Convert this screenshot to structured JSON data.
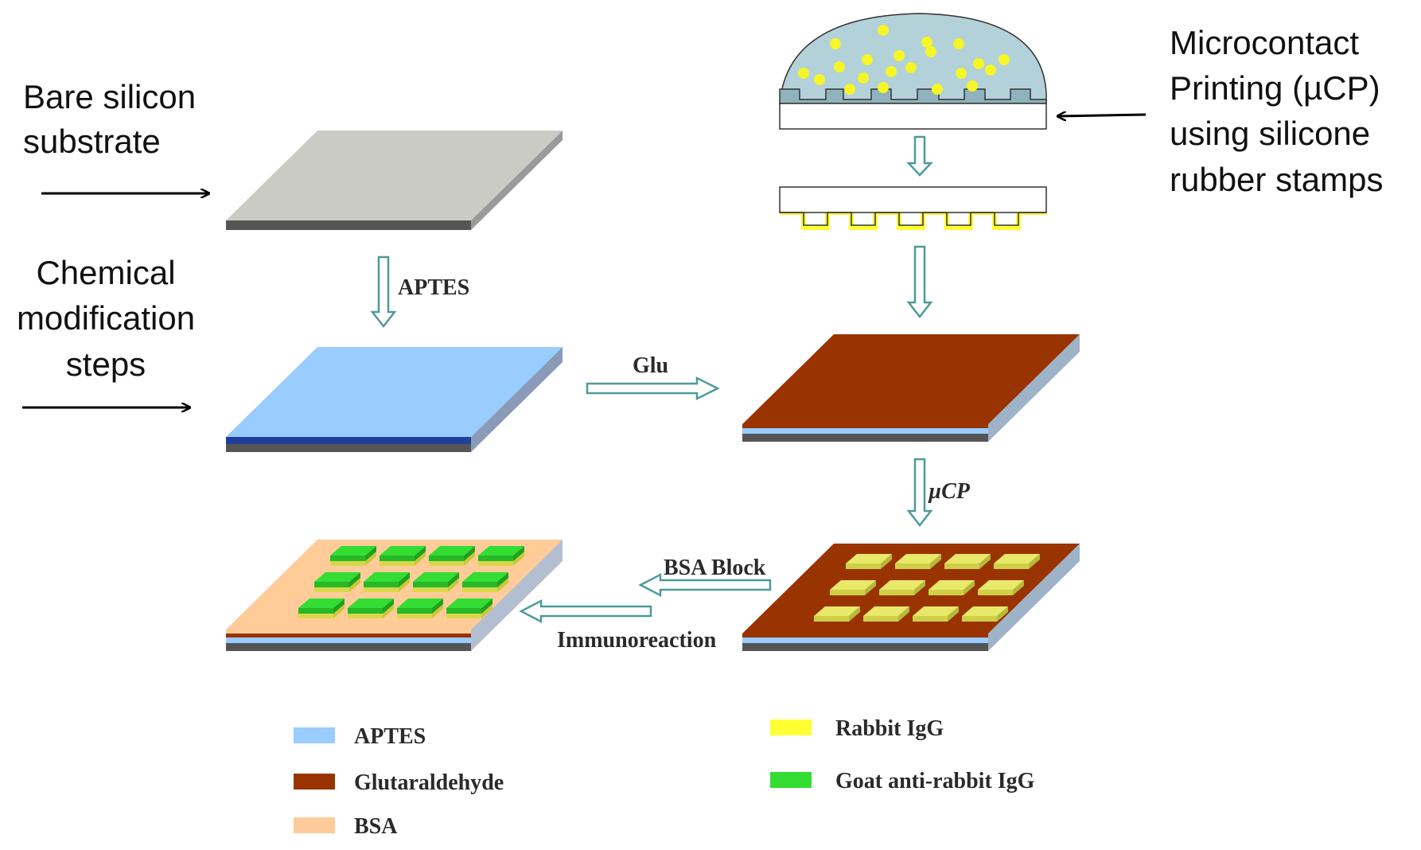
{
  "annotations": {
    "bare": [
      "Bare silicon",
      "substrate"
    ],
    "chemical": [
      "Chemical",
      "modification",
      "steps"
    ],
    "mcp": [
      "Microcontact",
      "Printing (µCP)",
      "using silicone",
      "rubber stamps"
    ]
  },
  "steps": {
    "aptes": "APTES",
    "glu": "Glu",
    "ucp": "µCP",
    "bsa_block": "BSA Block",
    "immuno": "Immunoreaction"
  },
  "legend": [
    {
      "label": "APTES",
      "color": "#99ccff"
    },
    {
      "label": "Glutaraldehyde",
      "color": "#993300"
    },
    {
      "label": "BSA",
      "color": "#ffcc99"
    },
    {
      "label": "Rabbit IgG",
      "color": "#ffff33"
    },
    {
      "label": "Goat anti-rabbit IgG",
      "color": "#33dd33"
    }
  ],
  "colors": {
    "silicon_top": "#cbcbc6",
    "silicon_base": "#555555",
    "aptes": "#99ccff",
    "aptes_edge": "#1f3f99",
    "glutaraldehyde": "#993300",
    "bsa": "#ffcc99",
    "rabbit_igg": "#ffff33",
    "goat_igg": "#33dd33",
    "flow_arrow": "#4f9a9a",
    "stamp_ink": "#b3d1d9",
    "dots": "#f5f528"
  }
}
